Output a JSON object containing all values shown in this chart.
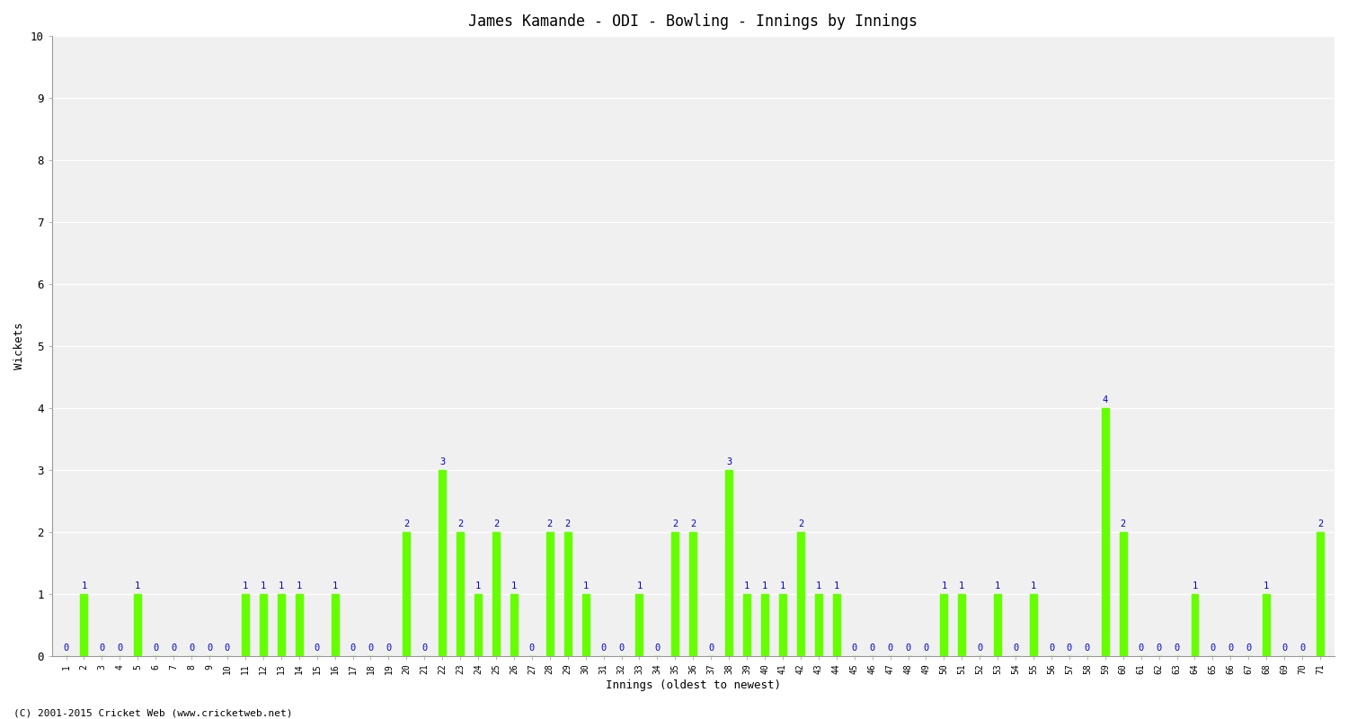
{
  "title": "James Kamande - ODI - Bowling - Innings by Innings",
  "xlabel": "Innings (oldest to newest)",
  "ylabel": "Wickets",
  "ylim": [
    0,
    10
  ],
  "yticks": [
    0,
    1,
    2,
    3,
    4,
    5,
    6,
    7,
    8,
    9,
    10
  ],
  "background_color": "#ffffff",
  "plot_bg_color": "#f0f0f0",
  "bar_color": "#66ff00",
  "label_color": "#0000cc",
  "grid_color": "#ffffff",
  "title_fontsize": 12,
  "axis_fontsize": 9,
  "label_fontsize": 7.5,
  "tick_fontsize": 7,
  "bar_width": 0.4,
  "innings": [
    1,
    2,
    3,
    4,
    5,
    6,
    7,
    8,
    9,
    10,
    11,
    12,
    13,
    14,
    15,
    16,
    17,
    18,
    19,
    20,
    21,
    22,
    23,
    24,
    25,
    26,
    27,
    28,
    29,
    30,
    31,
    32,
    33,
    34,
    35,
    36,
    37,
    38,
    39,
    40,
    41,
    42,
    43,
    44,
    45,
    46,
    47,
    48,
    49,
    50,
    51,
    52,
    53,
    54,
    55,
    56,
    57,
    58,
    59,
    60,
    61,
    62,
    63,
    64,
    65,
    66,
    67,
    68,
    69,
    70,
    71
  ],
  "wickets": [
    0,
    1,
    0,
    0,
    1,
    0,
    0,
    0,
    0,
    0,
    1,
    1,
    1,
    1,
    0,
    1,
    0,
    0,
    0,
    2,
    0,
    3,
    2,
    1,
    2,
    1,
    0,
    2,
    2,
    1,
    0,
    0,
    1,
    0,
    2,
    2,
    0,
    3,
    1,
    1,
    1,
    2,
    1,
    1,
    0,
    0,
    0,
    0,
    0,
    1,
    1,
    0,
    1,
    0,
    1,
    0,
    0,
    0,
    4,
    2,
    0,
    0,
    0,
    1,
    0,
    0,
    0,
    1,
    0,
    0,
    2
  ],
  "footer": "(C) 2001-2015 Cricket Web (www.cricketweb.net)"
}
